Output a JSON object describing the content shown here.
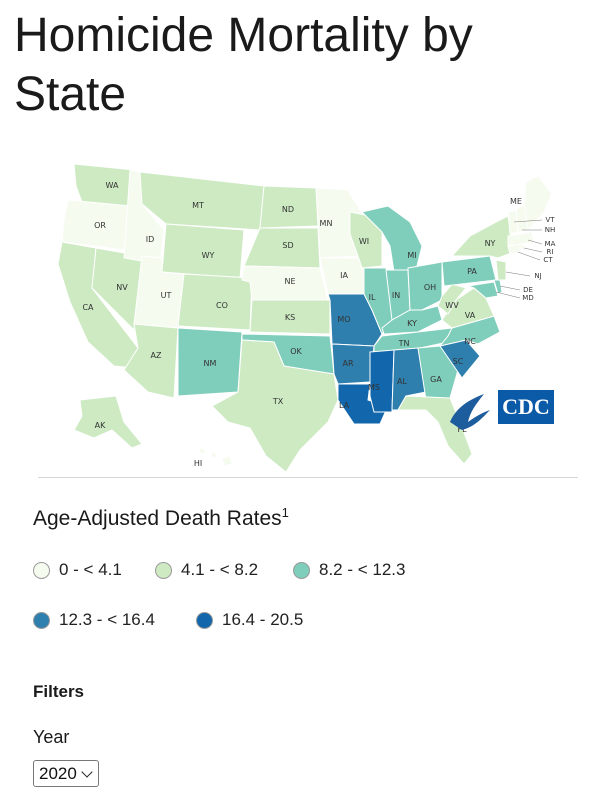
{
  "page": {
    "title": "Homicide Mortality by State"
  },
  "legend": {
    "title": "Age-Adjusted Death Rates",
    "footnote": "1",
    "items": [
      {
        "label": "0 - < 4.1",
        "color": "#f5fbef"
      },
      {
        "label": "4.1 - < 8.2",
        "color": "#cdeac3"
      },
      {
        "label": "8.2 - < 12.3",
        "color": "#7fcdbb"
      },
      {
        "label": "12.3 - < 16.4",
        "color": "#2f7fae"
      },
      {
        "label": "16.4 - 20.5",
        "color": "#1266ab"
      }
    ]
  },
  "filters": {
    "title": "Filters",
    "year_label": "Year",
    "year_value": "2020"
  },
  "map": {
    "logo_text": "CDC",
    "bins": {
      "0": "#f5fbef",
      "1": "#cdeac3",
      "2": "#7fcdbb",
      "3": "#2f7fae",
      "4": "#1266ab"
    },
    "states": {
      "WA": 1,
      "OR": 0,
      "ID": 0,
      "MT": 1,
      "WY": 1,
      "ND": 1,
      "SD": 1,
      "NE": 0,
      "KS": 1,
      "MN": 0,
      "IA": 0,
      "WI": 1,
      "MI": 2,
      "IL": 2,
      "IN": 2,
      "OH": 2,
      "PA": 2,
      "NY": 1,
      "ME": 0,
      "VT": 0,
      "NH": 0,
      "MA": 0,
      "RI": 0,
      "CT": 0,
      "NJ": 1,
      "DE": 2,
      "MD": 2,
      "WV": 1,
      "VA": 1,
      "NC": 2,
      "SC": 3,
      "GA": 2,
      "FL": 1,
      "AL": 3,
      "MS": 4,
      "TN": 2,
      "KY": 2,
      "MO": 3,
      "AR": 3,
      "LA": 4,
      "OK": 2,
      "TX": 1,
      "NM": 2,
      "AZ": 1,
      "CO": 1,
      "UT": 0,
      "NV": 1,
      "CA": 1,
      "AK": 1,
      "HI": 0
    }
  }
}
